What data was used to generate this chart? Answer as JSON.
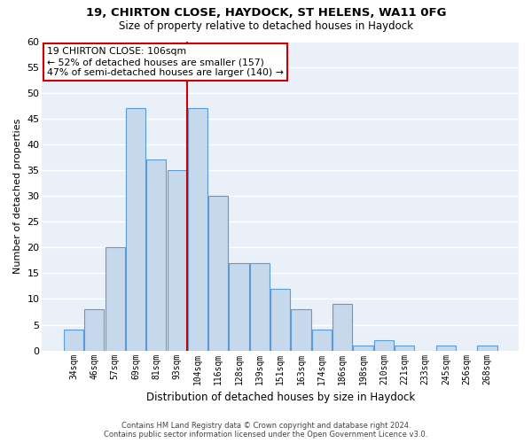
{
  "title1": "19, CHIRTON CLOSE, HAYDOCK, ST HELENS, WA11 0FG",
  "title2": "Size of property relative to detached houses in Haydock",
  "xlabel": "Distribution of detached houses by size in Haydock",
  "ylabel": "Number of detached properties",
  "categories": [
    "34sqm",
    "46sqm",
    "57sqm",
    "69sqm",
    "81sqm",
    "93sqm",
    "104sqm",
    "116sqm",
    "128sqm",
    "139sqm",
    "151sqm",
    "163sqm",
    "174sqm",
    "186sqm",
    "198sqm",
    "210sqm",
    "221sqm",
    "233sqm",
    "245sqm",
    "256sqm",
    "268sqm"
  ],
  "values": [
    4,
    8,
    20,
    47,
    37,
    35,
    47,
    30,
    17,
    17,
    12,
    8,
    4,
    9,
    1,
    2,
    1,
    0,
    1,
    0,
    1
  ],
  "bar_color": "#c6d9ec",
  "bar_edge_color": "#5b9bd5",
  "highlight_index": 6,
  "highlight_line_color": "#cc0000",
  "annotation_text": "19 CHIRTON CLOSE: 106sqm\n← 52% of detached houses are smaller (157)\n47% of semi-detached houses are larger (140) →",
  "annotation_box_color": "#ffffff",
  "annotation_box_edge_color": "#cc0000",
  "ylim": [
    0,
    60
  ],
  "yticks": [
    0,
    5,
    10,
    15,
    20,
    25,
    30,
    35,
    40,
    45,
    50,
    55,
    60
  ],
  "background_color": "#eaf0f8",
  "grid_color": "#ffffff",
  "footer1": "Contains HM Land Registry data © Crown copyright and database right 2024.",
  "footer2": "Contains public sector information licensed under the Open Government Licence v3.0."
}
